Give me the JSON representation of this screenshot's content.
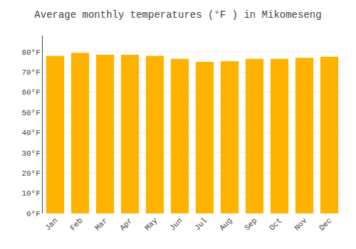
{
  "chart_data": {
    "type": "bar",
    "title": "Average monthly temperatures (°F ) in Mikomeseng",
    "categories": [
      "Jan",
      "Feb",
      "Mar",
      "Apr",
      "May",
      "Jun",
      "Jul",
      "Aug",
      "Sep",
      "Oct",
      "Nov",
      "Dec"
    ],
    "values": [
      78.0,
      79.5,
      78.5,
      78.5,
      78.0,
      76.5,
      75.0,
      75.3,
      76.5,
      76.5,
      77.0,
      77.5
    ],
    "color": "#FFB300",
    "ylim": [
      0,
      88
    ],
    "yticks": [
      {
        "value": 0,
        "label": "0°F"
      },
      {
        "value": 10,
        "label": "10°F"
      },
      {
        "value": 20,
        "label": "20°F"
      },
      {
        "value": 30,
        "label": "30°F"
      },
      {
        "value": 40,
        "label": "40°F"
      },
      {
        "value": 50,
        "label": "50°F"
      },
      {
        "value": 60,
        "label": "60°F"
      },
      {
        "value": 70,
        "label": "70°F"
      },
      {
        "value": 80,
        "label": "80°F"
      }
    ],
    "grid": true
  }
}
